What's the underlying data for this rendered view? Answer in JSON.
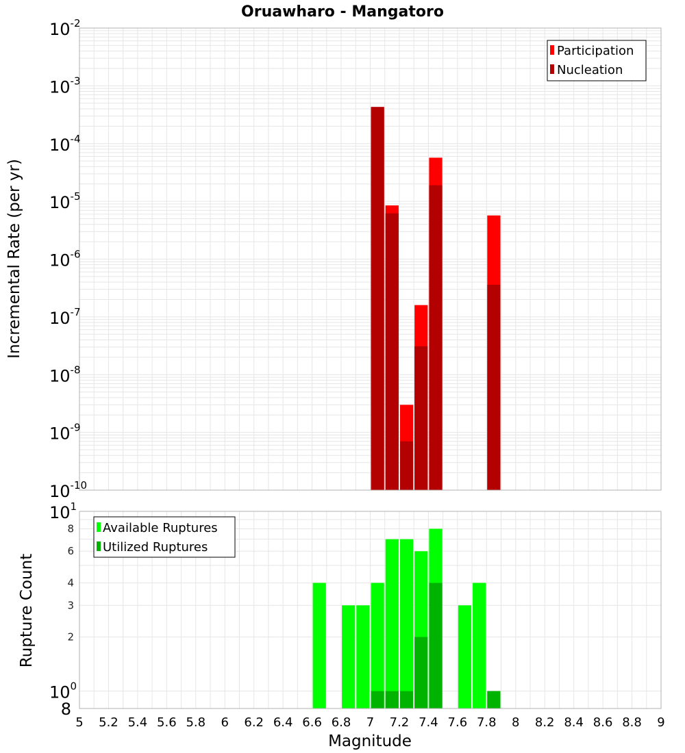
{
  "title": "Oruawharo - Mangatoro",
  "colors": {
    "participation": "#ff0000",
    "nucleation": "#b30000",
    "available": "#00ff00",
    "utilized": "#00b300",
    "grid": "#e6e6e6",
    "frame": "#b0b0b0"
  },
  "chart_data": [
    {
      "type": "bar",
      "yscale": "log",
      "ylabel": "Incremental Rate (per yr)",
      "xlim": [
        5,
        9
      ],
      "ylim": [
        1e-10,
        0.01
      ],
      "grid": true,
      "legend_position": "top-right",
      "y_decade_labels": [
        {
          "base": "10",
          "exp": "-10",
          "value": 1e-10
        },
        {
          "base": "10",
          "exp": "-9",
          "value": 1e-09
        },
        {
          "base": "10",
          "exp": "-8",
          "value": 1e-08
        },
        {
          "base": "10",
          "exp": "-7",
          "value": 1e-07
        },
        {
          "base": "10",
          "exp": "-6",
          "value": 1e-06
        },
        {
          "base": "10",
          "exp": "-5",
          "value": 1e-05
        },
        {
          "base": "10",
          "exp": "-4",
          "value": 0.0001
        },
        {
          "base": "10",
          "exp": "-3",
          "value": 0.001
        },
        {
          "base": "10",
          "exp": "-2",
          "value": 0.01
        }
      ],
      "legend": [
        "Participation",
        "Nucleation"
      ],
      "series": [
        {
          "name": "Participation",
          "x": [
            7.05,
            7.15,
            7.25,
            7.35,
            7.45,
            7.85
          ],
          "values": [
            0.00043,
            8.5e-06,
            3e-09,
            1.6e-07,
            5.7e-05,
            5.7e-06
          ]
        },
        {
          "name": "Nucleation",
          "x": [
            7.05,
            7.15,
            7.25,
            7.35,
            7.45,
            7.85
          ],
          "values": [
            0.00043,
            6.2e-06,
            7e-10,
            3.1e-08,
            1.9e-05,
            3.6e-07
          ]
        }
      ]
    },
    {
      "type": "bar",
      "yscale": "log",
      "ylabel": "Rupture Count",
      "xlabel": "Magnitude",
      "xlim": [
        5,
        9
      ],
      "ylim": [
        0.8,
        10
      ],
      "grid": true,
      "legend_position": "top-left",
      "x_ticks": [
        "5",
        "5.2",
        "5.4",
        "5.6",
        "5.8",
        "6",
        "6.2",
        "6.4",
        "6.6",
        "6.8",
        "7",
        "7.2",
        "7.4",
        "7.6",
        "7.8",
        "8",
        "8.2",
        "8.4",
        "8.6",
        "8.8",
        "9"
      ],
      "y_decade_labels": [
        {
          "base": "10",
          "exp": "0",
          "value": 1
        },
        {
          "base": "10",
          "exp": "1",
          "value": 10
        }
      ],
      "y_minor_labels": [
        {
          "label": "8",
          "value": 0.8
        },
        {
          "label": "2",
          "value": 2
        },
        {
          "label": "3",
          "value": 3
        },
        {
          "label": "4",
          "value": 4
        },
        {
          "label": "6",
          "value": 6
        },
        {
          "label": "8",
          "value": 8
        }
      ],
      "legend": [
        "Available Ruptures",
        "Utilized Ruptures"
      ],
      "series": [
        {
          "name": "Available Ruptures",
          "x": [
            6.65,
            6.85,
            6.95,
            7.05,
            7.15,
            7.25,
            7.35,
            7.45,
            7.65,
            7.75,
            7.85
          ],
          "values": [
            4,
            3,
            3,
            4,
            7,
            7,
            6,
            8,
            3,
            4,
            1
          ]
        },
        {
          "name": "Utilized Ruptures",
          "x": [
            7.05,
            7.15,
            7.25,
            7.35,
            7.45,
            7.85
          ],
          "values": [
            1,
            1,
            1,
            2,
            4,
            1
          ]
        }
      ]
    }
  ]
}
